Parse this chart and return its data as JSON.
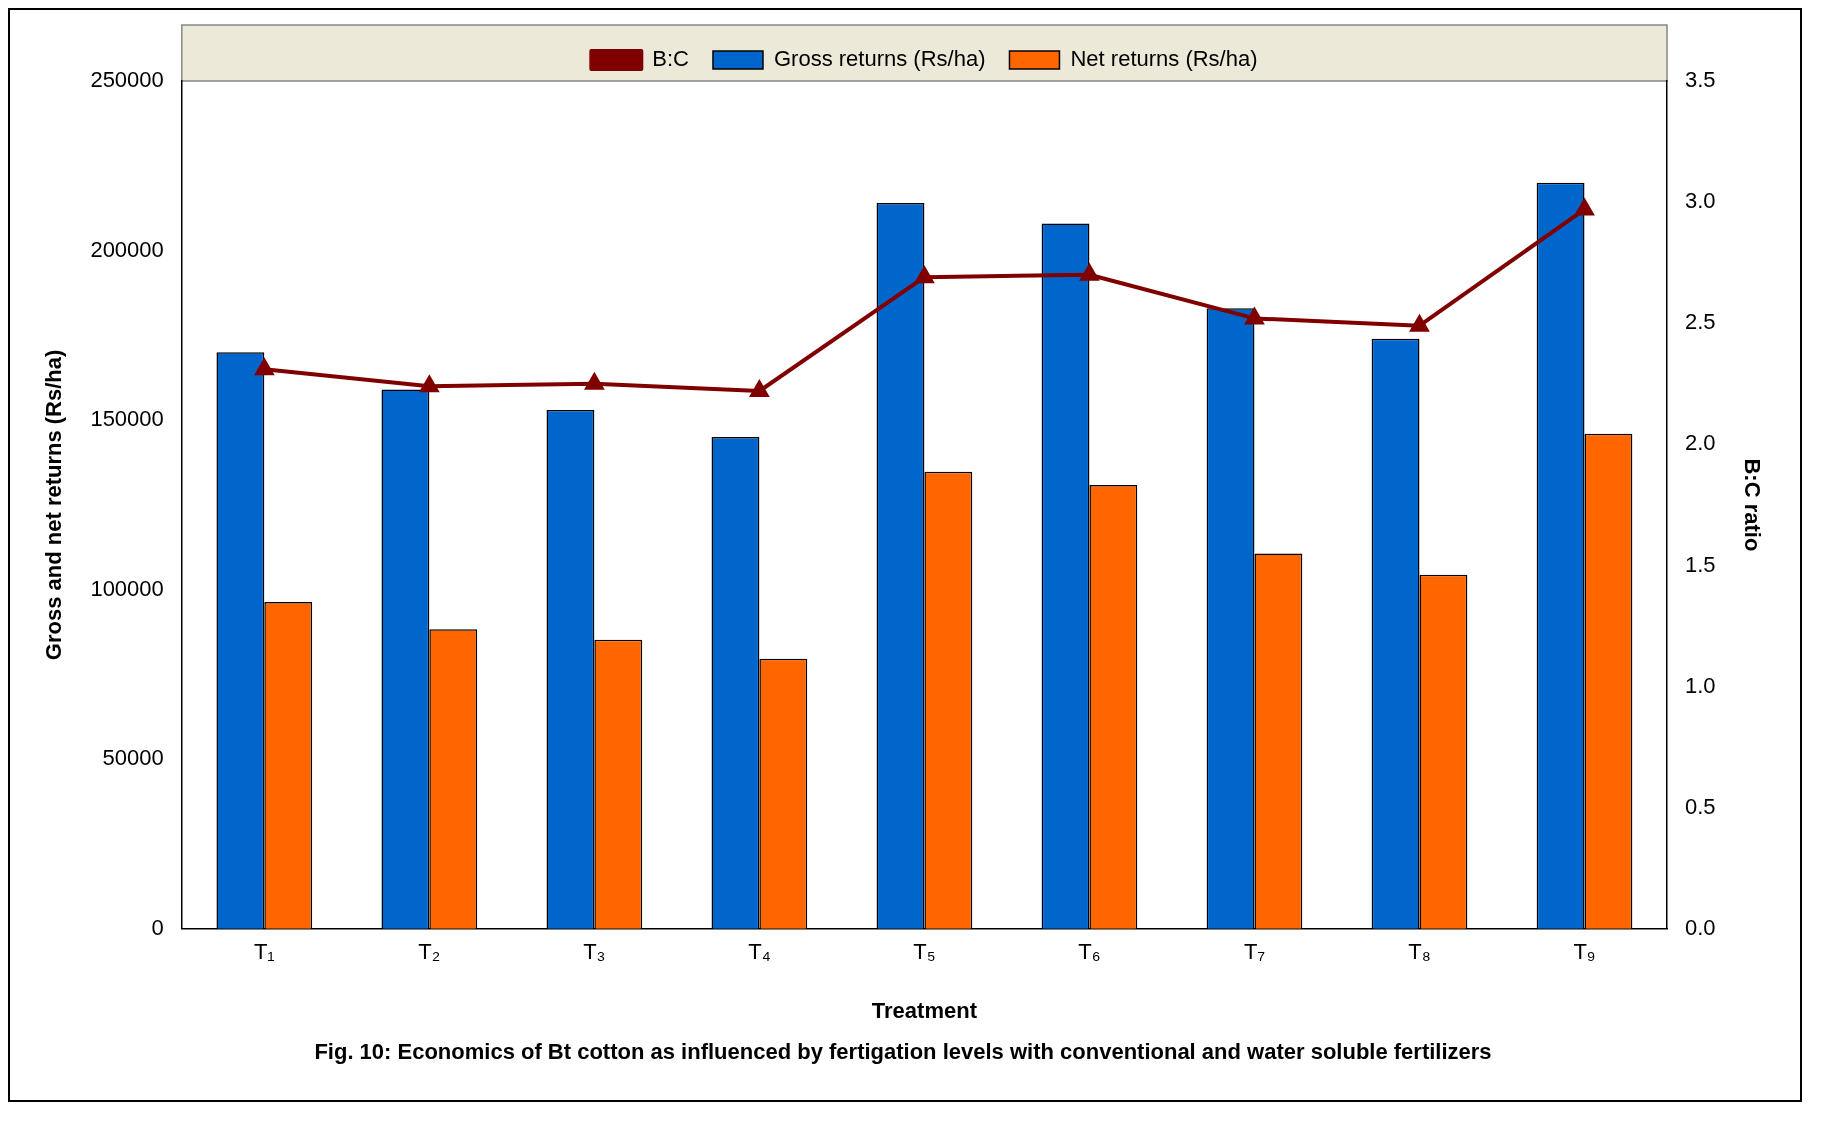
{
  "chart_data": {
    "type": "bar",
    "title": "Fig. 10: Economics of Bt cotton as influenced by fertigation levels with conventional and water soluble fertilizers",
    "xlabel": "Treatment",
    "ylabel": "Gross and net returns (Rs/ha)",
    "y2label": "B:C ratio",
    "categories": [
      "T₁",
      "T₂",
      "T₃",
      "T₄",
      "T₅",
      "T₆",
      "T₇",
      "T₈",
      "T₉"
    ],
    "series": [
      {
        "name": "Gross returns (Rs/ha)",
        "color": "#0066cc",
        "values": [
          170000,
          159000,
          153000,
          145000,
          214000,
          208000,
          183000,
          174000,
          220000
        ]
      },
      {
        "name": "Net returns (Rs/ha)",
        "color": "#ff6600",
        "values": [
          96400,
          88300,
          85200,
          79600,
          134800,
          130900,
          110700,
          104400,
          146000
        ]
      },
      {
        "name": "B:C",
        "type": "line",
        "axis": "y2",
        "color": "#800000",
        "marker": "triangle",
        "values": [
          2.31,
          2.24,
          2.25,
          2.22,
          2.69,
          2.7,
          2.52,
          2.49,
          2.97
        ]
      }
    ],
    "ylim": [
      0,
      250000
    ],
    "yticks": [
      0,
      50000,
      100000,
      150000,
      200000,
      250000
    ],
    "y2lim": [
      0,
      3.5
    ],
    "y2ticks": [
      {
        "value": 0,
        "label": "0.0"
      },
      0.5,
      {
        "value": 1,
        "label": "1.0"
      },
      1.5,
      {
        "value": 2,
        "label": "2.0"
      },
      2.5,
      {
        "value": 3,
        "label": "3.0"
      },
      3.5
    ],
    "grid": false,
    "legend": "top"
  }
}
